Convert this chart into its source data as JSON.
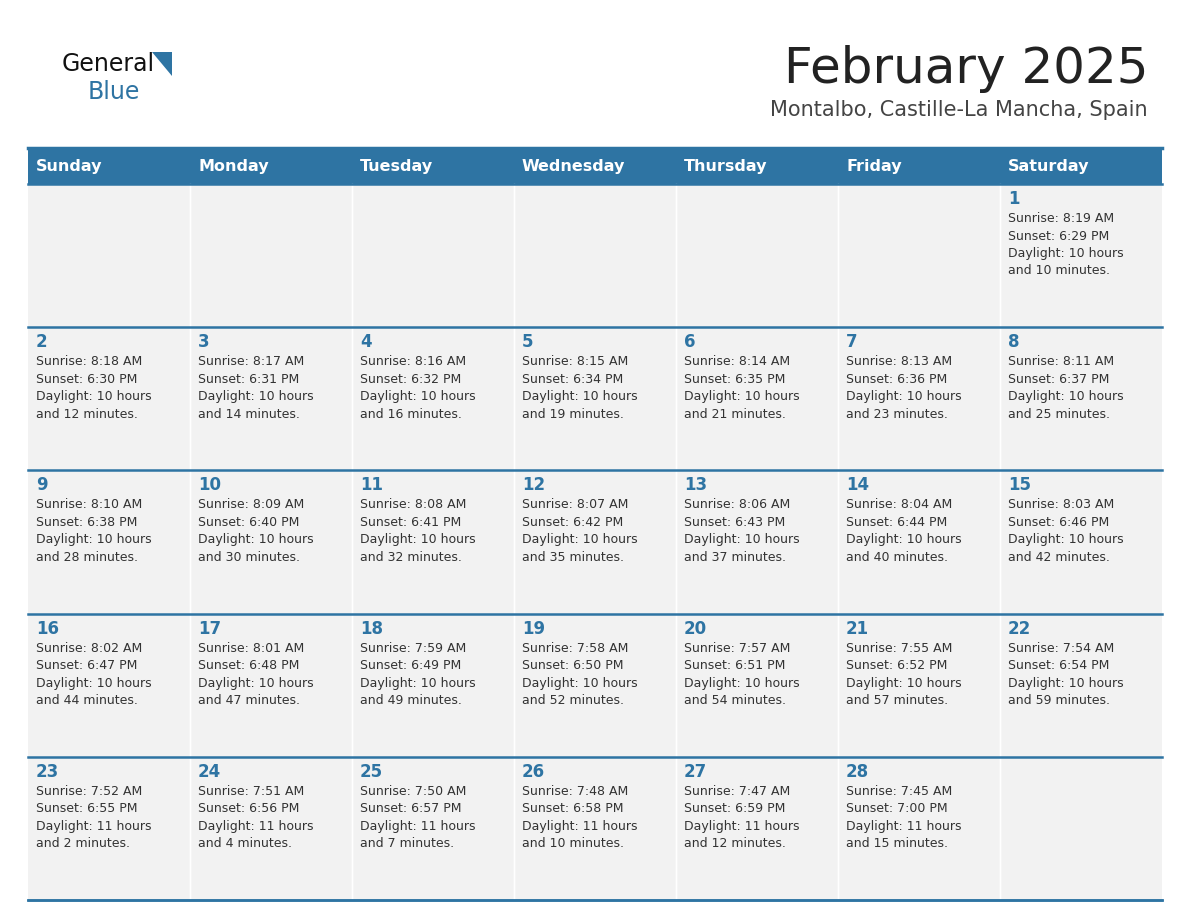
{
  "title": "February 2025",
  "subtitle": "Montalbo, Castille-La Mancha, Spain",
  "days_of_week": [
    "Sunday",
    "Monday",
    "Tuesday",
    "Wednesday",
    "Thursday",
    "Friday",
    "Saturday"
  ],
  "header_bg": "#2e74a3",
  "header_text": "#ffffff",
  "cell_bg": "#f2f2f2",
  "separator_color": "#2e74a3",
  "day_num_color": "#2e74a3",
  "text_color": "#333333",
  "title_color": "#222222",
  "subtitle_color": "#444444",
  "calendar_data": [
    [
      null,
      null,
      null,
      null,
      null,
      null,
      {
        "day": 1,
        "sunrise": "8:19 AM",
        "sunset": "6:29 PM",
        "daylight": "10 hours",
        "daylight2": "and 10 minutes."
      }
    ],
    [
      {
        "day": 2,
        "sunrise": "8:18 AM",
        "sunset": "6:30 PM",
        "daylight": "10 hours",
        "daylight2": "and 12 minutes."
      },
      {
        "day": 3,
        "sunrise": "8:17 AM",
        "sunset": "6:31 PM",
        "daylight": "10 hours",
        "daylight2": "and 14 minutes."
      },
      {
        "day": 4,
        "sunrise": "8:16 AM",
        "sunset": "6:32 PM",
        "daylight": "10 hours",
        "daylight2": "and 16 minutes."
      },
      {
        "day": 5,
        "sunrise": "8:15 AM",
        "sunset": "6:34 PM",
        "daylight": "10 hours",
        "daylight2": "and 19 minutes."
      },
      {
        "day": 6,
        "sunrise": "8:14 AM",
        "sunset": "6:35 PM",
        "daylight": "10 hours",
        "daylight2": "and 21 minutes."
      },
      {
        "day": 7,
        "sunrise": "8:13 AM",
        "sunset": "6:36 PM",
        "daylight": "10 hours",
        "daylight2": "and 23 minutes."
      },
      {
        "day": 8,
        "sunrise": "8:11 AM",
        "sunset": "6:37 PM",
        "daylight": "10 hours",
        "daylight2": "and 25 minutes."
      }
    ],
    [
      {
        "day": 9,
        "sunrise": "8:10 AM",
        "sunset": "6:38 PM",
        "daylight": "10 hours",
        "daylight2": "and 28 minutes."
      },
      {
        "day": 10,
        "sunrise": "8:09 AM",
        "sunset": "6:40 PM",
        "daylight": "10 hours",
        "daylight2": "and 30 minutes."
      },
      {
        "day": 11,
        "sunrise": "8:08 AM",
        "sunset": "6:41 PM",
        "daylight": "10 hours",
        "daylight2": "and 32 minutes."
      },
      {
        "day": 12,
        "sunrise": "8:07 AM",
        "sunset": "6:42 PM",
        "daylight": "10 hours",
        "daylight2": "and 35 minutes."
      },
      {
        "day": 13,
        "sunrise": "8:06 AM",
        "sunset": "6:43 PM",
        "daylight": "10 hours",
        "daylight2": "and 37 minutes."
      },
      {
        "day": 14,
        "sunrise": "8:04 AM",
        "sunset": "6:44 PM",
        "daylight": "10 hours",
        "daylight2": "and 40 minutes."
      },
      {
        "day": 15,
        "sunrise": "8:03 AM",
        "sunset": "6:46 PM",
        "daylight": "10 hours",
        "daylight2": "and 42 minutes."
      }
    ],
    [
      {
        "day": 16,
        "sunrise": "8:02 AM",
        "sunset": "6:47 PM",
        "daylight": "10 hours",
        "daylight2": "and 44 minutes."
      },
      {
        "day": 17,
        "sunrise": "8:01 AM",
        "sunset": "6:48 PM",
        "daylight": "10 hours",
        "daylight2": "and 47 minutes."
      },
      {
        "day": 18,
        "sunrise": "7:59 AM",
        "sunset": "6:49 PM",
        "daylight": "10 hours",
        "daylight2": "and 49 minutes."
      },
      {
        "day": 19,
        "sunrise": "7:58 AM",
        "sunset": "6:50 PM",
        "daylight": "10 hours",
        "daylight2": "and 52 minutes."
      },
      {
        "day": 20,
        "sunrise": "7:57 AM",
        "sunset": "6:51 PM",
        "daylight": "10 hours",
        "daylight2": "and 54 minutes."
      },
      {
        "day": 21,
        "sunrise": "7:55 AM",
        "sunset": "6:52 PM",
        "daylight": "10 hours",
        "daylight2": "and 57 minutes."
      },
      {
        "day": 22,
        "sunrise": "7:54 AM",
        "sunset": "6:54 PM",
        "daylight": "10 hours",
        "daylight2": "and 59 minutes."
      }
    ],
    [
      {
        "day": 23,
        "sunrise": "7:52 AM",
        "sunset": "6:55 PM",
        "daylight": "11 hours",
        "daylight2": "and 2 minutes."
      },
      {
        "day": 24,
        "sunrise": "7:51 AM",
        "sunset": "6:56 PM",
        "daylight": "11 hours",
        "daylight2": "and 4 minutes."
      },
      {
        "day": 25,
        "sunrise": "7:50 AM",
        "sunset": "6:57 PM",
        "daylight": "11 hours",
        "daylight2": "and 7 minutes."
      },
      {
        "day": 26,
        "sunrise": "7:48 AM",
        "sunset": "6:58 PM",
        "daylight": "11 hours",
        "daylight2": "and 10 minutes."
      },
      {
        "day": 27,
        "sunrise": "7:47 AM",
        "sunset": "6:59 PM",
        "daylight": "11 hours",
        "daylight2": "and 12 minutes."
      },
      {
        "day": 28,
        "sunrise": "7:45 AM",
        "sunset": "7:00 PM",
        "daylight": "11 hours",
        "daylight2": "and 15 minutes."
      },
      null
    ]
  ]
}
